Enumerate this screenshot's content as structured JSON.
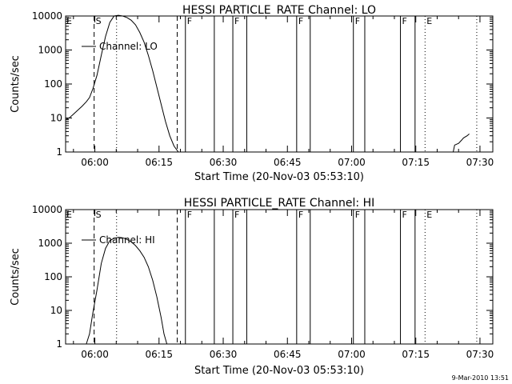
{
  "footer": {
    "timestamp": "9-Mar-2010 13:51"
  },
  "chart_data": [
    {
      "type": "line",
      "title": "HESSI PARTICLE_RATE Channel: LO",
      "xlabel": "Start Time (20-Nov-03 05:53:10)",
      "ylabel": "Counts/sec",
      "y_scale": "log",
      "ylim": [
        1,
        10000
      ],
      "xlim": [
        "05:53:10",
        "07:33:00"
      ],
      "x_ticks": [
        "06:00",
        "06:15",
        "06:30",
        "06:45",
        "07:00",
        "07:15",
        "07:30"
      ],
      "y_ticks": [
        "1",
        "10",
        "100",
        "1000",
        "10000"
      ],
      "legend": {
        "position": "upper-left",
        "entries": [
          "Channel: LO"
        ]
      },
      "series": [
        {
          "name": "Channel: LO",
          "segments": [
            {
              "x": [
                "05:53:10",
                "05:54:00",
                "05:55:00",
                "05:56:00",
                "05:57:00",
                "05:58:00",
                "05:58:45",
                "05:59:30",
                "06:00:30",
                "06:01:30",
                "06:02:30",
                "06:03:30",
                "06:04:30",
                "06:05:30",
                "06:06:30",
                "06:07:30",
                "06:08:30",
                "06:09:30",
                "06:10:30",
                "06:11:30",
                "06:12:30",
                "06:13:30",
                "06:14:30",
                "06:15:30",
                "06:16:30",
                "06:17:30",
                "06:18:30",
                "06:19:30",
                "06:20:10"
              ],
              "y": [
                9,
                10,
                13,
                17,
                22,
                30,
                40,
                70,
                180,
                700,
                2500,
                6500,
                10000,
                10500,
                10000,
                9000,
                7500,
                5500,
                3300,
                1700,
                700,
                250,
                80,
                25,
                8,
                3,
                1.5,
                1,
                1
              ]
            },
            {
              "x": [
                "07:22:10",
                "07:23:45",
                "07:24:05",
                "07:25:00",
                "07:25:40",
                "07:26:10",
                "07:27:00",
                "07:27:30"
              ],
              "y": [
                1,
                1,
                1.6,
                1.8,
                2.2,
                2.6,
                3.0,
                3.4
              ]
            }
          ]
        }
      ],
      "vertical_markers": [
        {
          "style": "dashed",
          "time": "05:59:50",
          "label": "S"
        },
        {
          "style": "dashed",
          "time": "06:19:15",
          "label": ""
        },
        {
          "style": "dotted",
          "time": "06:05:05",
          "label": ""
        },
        {
          "style": "solid",
          "time": "06:21:10",
          "label": "F"
        },
        {
          "style": "solid",
          "time": "06:27:55",
          "label": ""
        },
        {
          "style": "solid",
          "time": "06:32:15",
          "label": "F"
        },
        {
          "style": "solid",
          "time": "06:35:30",
          "label": ""
        },
        {
          "style": "solid",
          "time": "06:47:10",
          "label": "F"
        },
        {
          "style": "solid",
          "time": "06:50:20",
          "label": ""
        },
        {
          "style": "solid",
          "time": "07:00:25",
          "label": "F"
        },
        {
          "style": "solid",
          "time": "07:03:05",
          "label": ""
        },
        {
          "style": "solid",
          "time": "07:11:25",
          "label": "F"
        },
        {
          "style": "solid",
          "time": "07:14:50",
          "label": ""
        },
        {
          "style": "dotted",
          "time": "07:17:10",
          "label": "E"
        },
        {
          "style": "dotted",
          "time": "07:29:15",
          "label": ""
        }
      ],
      "corner_label": "E"
    },
    {
      "type": "line",
      "title": "HESSI PARTICLE_RATE Channel: HI",
      "xlabel": "Start Time (20-Nov-03 05:53:10)",
      "ylabel": "Counts/sec",
      "y_scale": "log",
      "ylim": [
        1,
        10000
      ],
      "xlim": [
        "05:53:10",
        "07:33:00"
      ],
      "x_ticks": [
        "06:00",
        "06:15",
        "06:30",
        "06:45",
        "07:00",
        "07:15",
        "07:30"
      ],
      "y_ticks": [
        "1",
        "10",
        "100",
        "1000",
        "10000"
      ],
      "legend": {
        "position": "upper-left",
        "entries": [
          "Channel: HI"
        ]
      },
      "series": [
        {
          "name": "Channel: HI",
          "segments": [
            {
              "x": [
                "05:58:00",
                "05:58:45",
                "05:59:30",
                "06:00:30",
                "06:01:30",
                "06:02:30",
                "06:03:30",
                "06:04:30",
                "06:05:30",
                "06:06:30",
                "06:07:30",
                "06:08:30",
                "06:09:30",
                "06:10:30",
                "06:11:30",
                "06:12:30",
                "06:13:30",
                "06:14:30",
                "06:15:30",
                "06:16:10",
                "06:16:50"
              ],
              "y": [
                1,
                2,
                8,
                40,
                250,
                700,
                1200,
                1400,
                1500,
                1450,
                1300,
                1100,
                850,
                600,
                380,
                200,
                80,
                25,
                6,
                2,
                1
              ]
            }
          ]
        }
      ],
      "vertical_markers": [
        {
          "style": "dashed",
          "time": "05:59:50",
          "label": "S"
        },
        {
          "style": "dashed",
          "time": "06:19:15",
          "label": ""
        },
        {
          "style": "dotted",
          "time": "06:05:05",
          "label": ""
        },
        {
          "style": "solid",
          "time": "06:21:10",
          "label": "F"
        },
        {
          "style": "solid",
          "time": "06:27:55",
          "label": ""
        },
        {
          "style": "solid",
          "time": "06:32:15",
          "label": "F"
        },
        {
          "style": "solid",
          "time": "06:35:30",
          "label": ""
        },
        {
          "style": "solid",
          "time": "06:47:10",
          "label": "F"
        },
        {
          "style": "solid",
          "time": "06:50:20",
          "label": ""
        },
        {
          "style": "solid",
          "time": "07:00:25",
          "label": "F"
        },
        {
          "style": "solid",
          "time": "07:03:05",
          "label": ""
        },
        {
          "style": "solid",
          "time": "07:11:25",
          "label": "F"
        },
        {
          "style": "solid",
          "time": "07:14:50",
          "label": ""
        },
        {
          "style": "dotted",
          "time": "07:17:10",
          "label": "E"
        },
        {
          "style": "dotted",
          "time": "07:29:15",
          "label": ""
        }
      ],
      "corner_label": "E"
    }
  ]
}
